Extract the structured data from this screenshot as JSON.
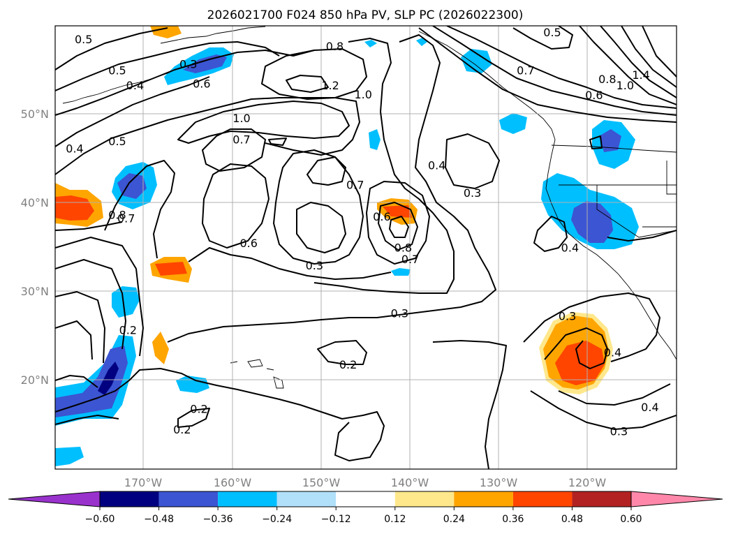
{
  "title": "2026021700 F024 850 hPa PV, SLP PC (2026022300)",
  "map": {
    "lon_range": [
      -180,
      -110
    ],
    "lat_range": [
      10,
      60
    ],
    "lat_labels": [
      "50°N",
      "40°N",
      "30°N",
      "20°N"
    ],
    "lon_labels": [
      "170°W",
      "160°W",
      "150°W",
      "140°W",
      "130°W",
      "120°W"
    ],
    "contour_color": "#000000",
    "gridline_color": "#b0b0b0",
    "contour_labels": [
      {
        "text": "0.5",
        "lon": -176.8,
        "lat": 58.5
      },
      {
        "text": "0.5",
        "lon": -173.0,
        "lat": 55.0
      },
      {
        "text": "0.4",
        "lon": -171.0,
        "lat": 53.3
      },
      {
        "text": "0.3",
        "lon": -165.0,
        "lat": 55.7
      },
      {
        "text": "0.6",
        "lon": -163.5,
        "lat": 53.5
      },
      {
        "text": "0.8",
        "lon": -148.5,
        "lat": 57.7
      },
      {
        "text": "1.2",
        "lon": -149.0,
        "lat": 53.3
      },
      {
        "text": "1.0",
        "lon": -145.3,
        "lat": 52.3
      },
      {
        "text": "1.0",
        "lon": -159.0,
        "lat": 49.6
      },
      {
        "text": "0.7",
        "lon": -159.0,
        "lat": 47.2
      },
      {
        "text": "0.5",
        "lon": -173.0,
        "lat": 47.0
      },
      {
        "text": "0.4",
        "lon": -177.8,
        "lat": 46.2
      },
      {
        "text": "0.7",
        "lon": -146.2,
        "lat": 42.1
      },
      {
        "text": "0.6",
        "lon": -143.2,
        "lat": 38.5
      },
      {
        "text": "0.4",
        "lon": -137.0,
        "lat": 44.3
      },
      {
        "text": "0.3",
        "lon": -133.0,
        "lat": 41.2
      },
      {
        "text": "0.8",
        "lon": -173.0,
        "lat": 38.7
      },
      {
        "text": "0.7",
        "lon": -172.0,
        "lat": 38.3
      },
      {
        "text": "0.6",
        "lon": -158.2,
        "lat": 35.5
      },
      {
        "text": "0.3",
        "lon": -150.8,
        "lat": 33.0
      },
      {
        "text": "0.8",
        "lon": -140.8,
        "lat": 35.0
      },
      {
        "text": "0.7",
        "lon": -140.0,
        "lat": 33.7
      },
      {
        "text": "0.5",
        "lon": -124.0,
        "lat": 59.3
      },
      {
        "text": "0.7",
        "lon": -127.0,
        "lat": 55.0
      },
      {
        "text": "0.8",
        "lon": -117.8,
        "lat": 54.0
      },
      {
        "text": "0.6",
        "lon": -119.3,
        "lat": 52.2
      },
      {
        "text": "1.0",
        "lon": -115.8,
        "lat": 53.3
      },
      {
        "text": "1.4",
        "lon": -114.0,
        "lat": 54.5
      },
      {
        "text": "0.4",
        "lon": -122.0,
        "lat": 35.0
      },
      {
        "text": "0.3",
        "lon": -141.2,
        "lat": 27.6
      },
      {
        "text": "0.3",
        "lon": -122.3,
        "lat": 27.3
      },
      {
        "text": "0.4",
        "lon": -117.2,
        "lat": 23.2
      },
      {
        "text": "0.2",
        "lon": -147.0,
        "lat": 21.8
      },
      {
        "text": "0.2",
        "lon": -171.8,
        "lat": 25.7
      },
      {
        "text": "0.2",
        "lon": -163.8,
        "lat": 16.8
      },
      {
        "text": "0.2",
        "lon": -165.7,
        "lat": 14.5
      },
      {
        "text": "0.4",
        "lon": -113.0,
        "lat": 17.0
      },
      {
        "text": "0.3",
        "lon": -116.5,
        "lat": 14.3
      }
    ]
  },
  "colorbar": {
    "ticks": [
      "−0.60",
      "−0.48",
      "−0.36",
      "−0.24",
      "−0.12",
      "0.12",
      "0.24",
      "0.36",
      "0.48",
      "0.60"
    ],
    "colors": [
      "#9932cc",
      "#000080",
      "#3c55d2",
      "#00bfff",
      "#b0e0fa",
      "#ffffff",
      "#ffe88c",
      "#ffa500",
      "#ff4500",
      "#b22222",
      "#ff88aa"
    ]
  }
}
